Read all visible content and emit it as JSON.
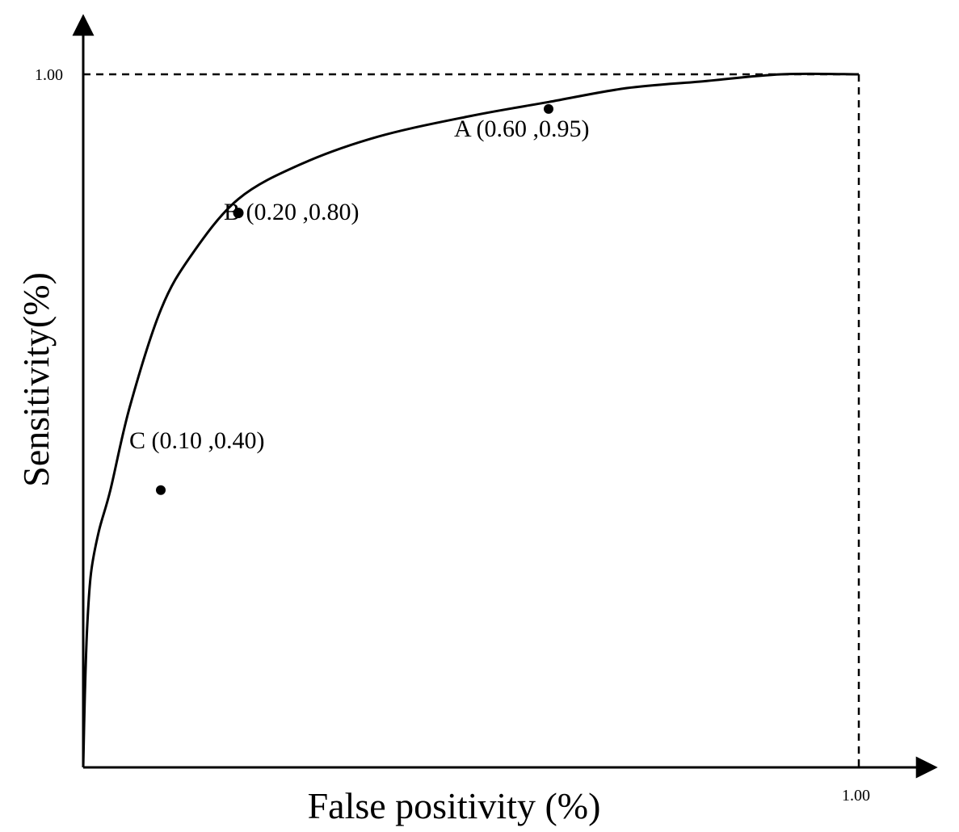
{
  "chart_data": {
    "type": "line",
    "xlabel": "False positivity (%)",
    "ylabel": "Sensitivity(%)",
    "xlim": [
      0,
      1
    ],
    "ylim": [
      0,
      1
    ],
    "x_ticks": [
      "1.00"
    ],
    "y_ticks": [
      "1.00"
    ],
    "grid": false,
    "curve": {
      "x": [
        0,
        0.002,
        0.005,
        0.01,
        0.02,
        0.035,
        0.06,
        0.1,
        0.14,
        0.2,
        0.28,
        0.38,
        0.5,
        0.6,
        0.7,
        0.8,
        0.9,
        1.0
      ],
      "y": [
        0,
        0.1,
        0.2,
        0.28,
        0.34,
        0.4,
        0.52,
        0.66,
        0.74,
        0.82,
        0.87,
        0.91,
        0.94,
        0.96,
        0.98,
        0.99,
        1.0,
        1.0
      ]
    },
    "points": [
      {
        "x": 0.6,
        "y": 0.95,
        "label": "A (0.60 ,0.95)"
      },
      {
        "x": 0.2,
        "y": 0.8,
        "label": "B (0.20 ,0.80)"
      },
      {
        "x": 0.1,
        "y": 0.4,
        "label": "C (0.10 ,0.40)"
      }
    ],
    "reference_lines": [
      {
        "style": "dashed",
        "from": [
          0,
          1
        ],
        "to": [
          1,
          1
        ]
      },
      {
        "style": "dashed",
        "from": [
          1,
          1
        ],
        "to": [
          1,
          0
        ]
      }
    ]
  }
}
